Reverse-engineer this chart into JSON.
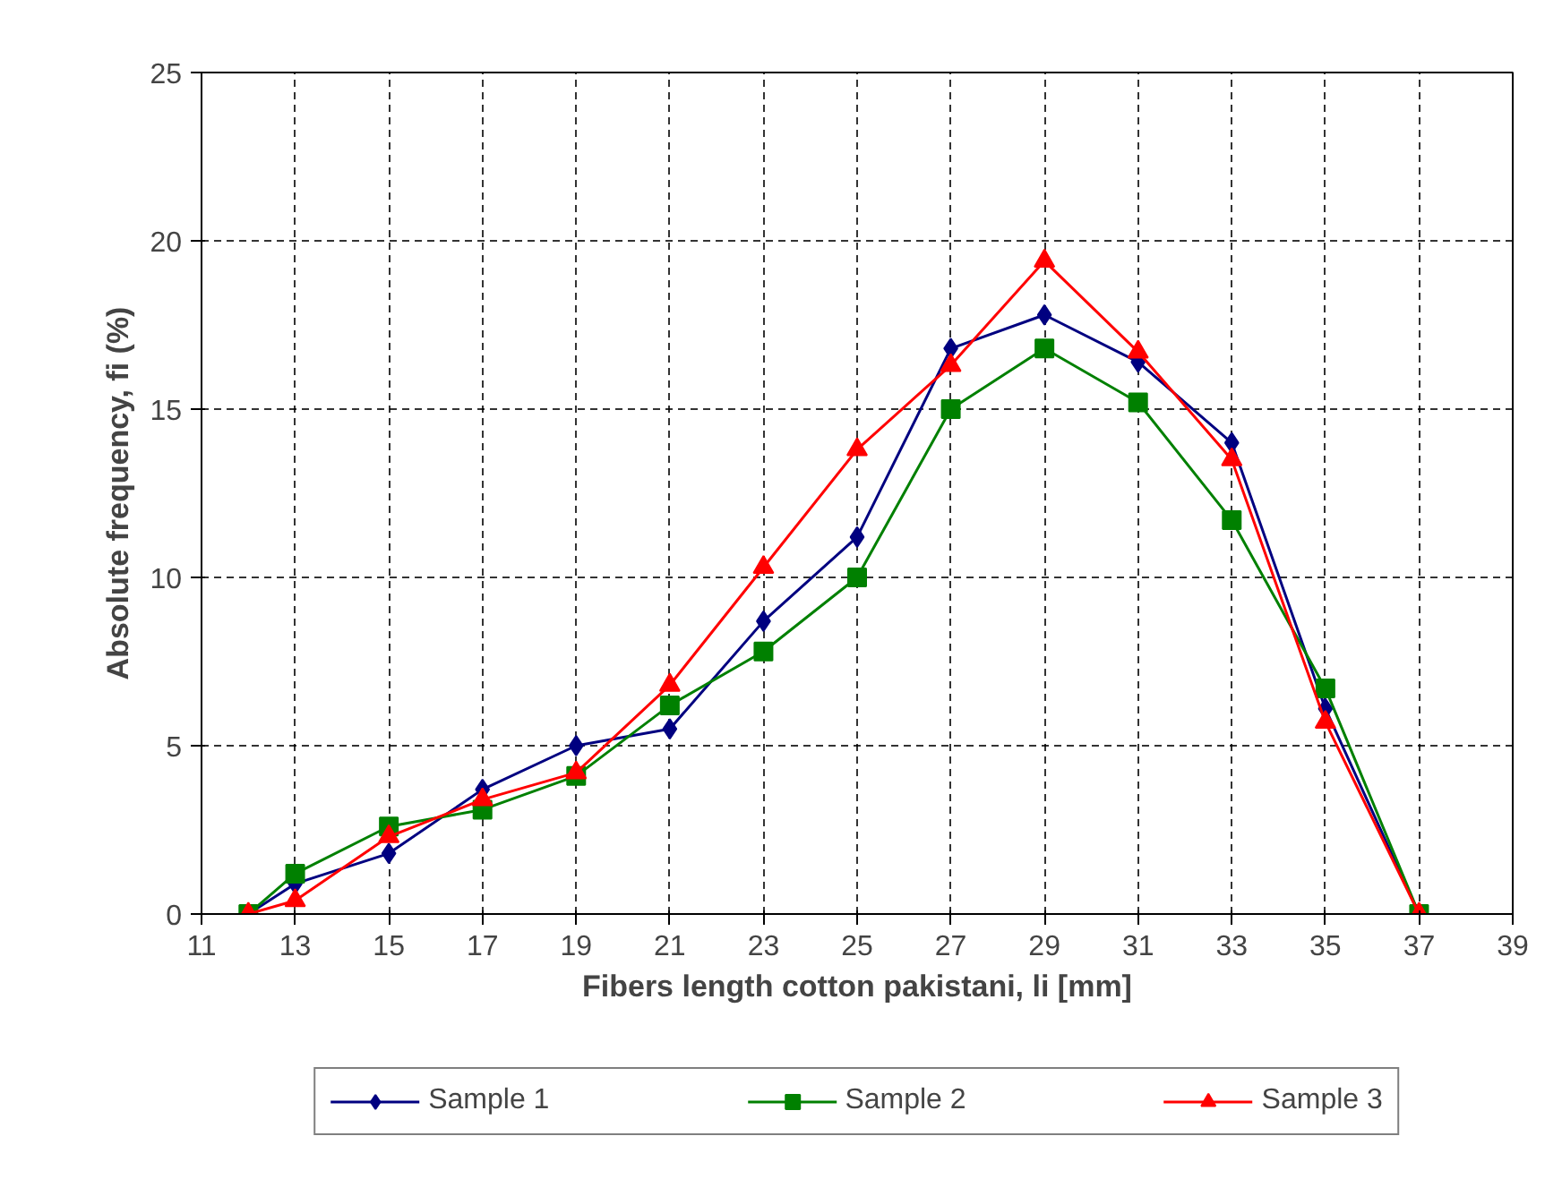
{
  "chart_data": {
    "type": "line",
    "xlabel": "Fibers length cotton pakistani, li [mm]",
    "ylabel": "Absolute frequency, fi (%)",
    "x": [
      12,
      13,
      15,
      17,
      19,
      21,
      23,
      25,
      27,
      29,
      31,
      33,
      35,
      37
    ],
    "series": [
      {
        "name": "Sample 1",
        "color": "#000080",
        "marker": "diamond",
        "values": [
          0,
          0.9,
          1.8,
          3.7,
          5.0,
          5.5,
          8.7,
          11.2,
          16.8,
          17.8,
          16.4,
          14.0,
          6.1,
          0
        ]
      },
      {
        "name": "Sample 2",
        "color": "#008000",
        "marker": "square",
        "values": [
          0,
          1.2,
          2.6,
          3.1,
          4.1,
          6.2,
          7.8,
          10.0,
          15.0,
          16.8,
          15.2,
          11.7,
          6.7,
          0
        ]
      },
      {
        "name": "Sample 3",
        "color": "#ff0000",
        "marker": "triangle",
        "values": [
          0,
          0.4,
          2.3,
          3.4,
          4.2,
          6.8,
          10.3,
          13.8,
          16.3,
          19.4,
          16.7,
          13.5,
          5.7,
          0
        ]
      }
    ],
    "xlim": [
      11,
      39
    ],
    "xticks": [
      11,
      13,
      15,
      17,
      19,
      21,
      23,
      25,
      27,
      29,
      31,
      33,
      35,
      37,
      39
    ],
    "ylim": [
      0,
      25
    ],
    "yticks": [
      0,
      5,
      10,
      15,
      20,
      25
    ],
    "grid": true,
    "legend": "bottom",
    "line_style": "solid"
  }
}
